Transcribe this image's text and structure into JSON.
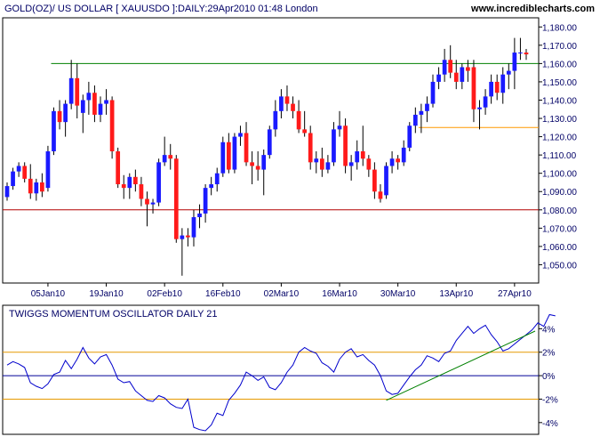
{
  "header": {
    "title": "GOLD(OZ)/ US DOLLAR [ XAUUSDO ]:DAILY:29Apr2010 01:48 London",
    "brand": "www.incrediblecharts.com"
  },
  "chart_data": [
    {
      "type": "candlestick",
      "title": "GOLD(OZ)/ US DOLLAR [ XAUUSDO ]:DAILY:29Apr2010 01:48 London",
      "y_ticks": [
        "1,050.00",
        "1,060.00",
        "1,070.00",
        "1,080.00",
        "1,090.00",
        "1,100.00",
        "1,110.00",
        "1,120.00",
        "1,130.00",
        "1,140.00",
        "1,150.00",
        "1,160.00",
        "1,170.00",
        "1,180.00"
      ],
      "ylim": [
        1040,
        1185
      ],
      "x_ticks": [
        "05Jan10",
        "19Jan10",
        "02Feb10",
        "16Feb10",
        "02Mar10",
        "16Mar10",
        "30Mar10",
        "13Apr10",
        "27Apr10"
      ],
      "colors": {
        "up": "#1a1aff",
        "down": "#ff1a1a",
        "wick": "#000000",
        "resistance": "#008000",
        "support": "#b30000",
        "low_line": "#ff9900"
      },
      "lines": [
        {
          "name": "resistance",
          "value": 1160,
          "from_index": 8,
          "to_index": 84
        },
        {
          "name": "support",
          "value": 1080,
          "from_index": 0,
          "to_index": 84
        },
        {
          "name": "recent-low",
          "value": 1125,
          "from_index": 71,
          "to_index": 84
        }
      ],
      "candles": [
        {
          "date": "2009-12-24",
          "o": 1087,
          "h": 1095,
          "l": 1085,
          "c": 1093
        },
        {
          "date": "2009-12-28",
          "o": 1093,
          "h": 1103,
          "l": 1091,
          "c": 1101
        },
        {
          "date": "2009-12-29",
          "o": 1101,
          "h": 1106,
          "l": 1098,
          "c": 1104
        },
        {
          "date": "2009-12-30",
          "o": 1104,
          "h": 1106,
          "l": 1095,
          "c": 1097
        },
        {
          "date": "2009-12-31",
          "o": 1097,
          "h": 1105,
          "l": 1086,
          "c": 1089
        },
        {
          "date": "2010-01-01",
          "o": 1089,
          "h": 1097,
          "l": 1085,
          "c": 1095
        },
        {
          "date": "2010-01-04",
          "o": 1095,
          "h": 1100,
          "l": 1087,
          "c": 1090
        },
        {
          "date": "2010-01-05",
          "o": 1092,
          "h": 1115,
          "l": 1090,
          "c": 1112
        },
        {
          "date": "2010-01-06",
          "o": 1112,
          "h": 1136,
          "l": 1110,
          "c": 1134
        },
        {
          "date": "2010-01-07",
          "o": 1134,
          "h": 1140,
          "l": 1124,
          "c": 1128
        },
        {
          "date": "2010-01-08",
          "o": 1128,
          "h": 1140,
          "l": 1120,
          "c": 1138
        },
        {
          "date": "2010-01-11",
          "o": 1138,
          "h": 1162,
          "l": 1135,
          "c": 1152
        },
        {
          "date": "2010-01-12",
          "o": 1152,
          "h": 1160,
          "l": 1130,
          "c": 1137
        },
        {
          "date": "2010-01-13",
          "o": 1133,
          "h": 1143,
          "l": 1122,
          "c": 1140
        },
        {
          "date": "2010-01-14",
          "o": 1140,
          "h": 1150,
          "l": 1132,
          "c": 1144
        },
        {
          "date": "2010-01-15",
          "o": 1144,
          "h": 1148,
          "l": 1128,
          "c": 1132
        },
        {
          "date": "2010-01-18",
          "o": 1132,
          "h": 1142,
          "l": 1128,
          "c": 1138
        },
        {
          "date": "2010-01-19",
          "o": 1138,
          "h": 1146,
          "l": 1132,
          "c": 1140
        },
        {
          "date": "2010-01-20",
          "o": 1140,
          "h": 1142,
          "l": 1108,
          "c": 1112
        },
        {
          "date": "2010-01-21",
          "o": 1112,
          "h": 1114,
          "l": 1092,
          "c": 1094
        },
        {
          "date": "2010-01-22",
          "o": 1094,
          "h": 1099,
          "l": 1086,
          "c": 1092
        },
        {
          "date": "2010-01-25",
          "o": 1092,
          "h": 1100,
          "l": 1086,
          "c": 1098
        },
        {
          "date": "2010-01-26",
          "o": 1098,
          "h": 1102,
          "l": 1090,
          "c": 1094
        },
        {
          "date": "2010-01-27",
          "o": 1094,
          "h": 1098,
          "l": 1082,
          "c": 1086
        },
        {
          "date": "2010-01-28",
          "o": 1086,
          "h": 1090,
          "l": 1071,
          "c": 1083
        },
        {
          "date": "2010-01-29",
          "o": 1083,
          "h": 1086,
          "l": 1078,
          "c": 1084
        },
        {
          "date": "2010-02-01",
          "o": 1084,
          "h": 1108,
          "l": 1082,
          "c": 1106
        },
        {
          "date": "2010-02-02",
          "o": 1106,
          "h": 1120,
          "l": 1104,
          "c": 1110
        },
        {
          "date": "2010-02-03",
          "o": 1110,
          "h": 1116,
          "l": 1102,
          "c": 1108
        },
        {
          "date": "2010-02-04",
          "o": 1108,
          "h": 1110,
          "l": 1062,
          "c": 1064
        },
        {
          "date": "2010-02-05",
          "o": 1064,
          "h": 1070,
          "l": 1044,
          "c": 1066
        },
        {
          "date": "2010-02-08",
          "o": 1066,
          "h": 1070,
          "l": 1060,
          "c": 1065
        },
        {
          "date": "2010-02-09",
          "o": 1065,
          "h": 1080,
          "l": 1060,
          "c": 1076
        },
        {
          "date": "2010-02-10",
          "o": 1076,
          "h": 1083,
          "l": 1070,
          "c": 1078
        },
        {
          "date": "2010-02-11",
          "o": 1078,
          "h": 1094,
          "l": 1073,
          "c": 1092
        },
        {
          "date": "2010-02-12",
          "o": 1092,
          "h": 1098,
          "l": 1088,
          "c": 1094
        },
        {
          "date": "2010-02-15",
          "o": 1094,
          "h": 1103,
          "l": 1090,
          "c": 1100
        },
        {
          "date": "2010-02-16",
          "o": 1100,
          "h": 1120,
          "l": 1098,
          "c": 1117
        },
        {
          "date": "2010-02-17",
          "o": 1117,
          "h": 1122,
          "l": 1100,
          "c": 1102
        },
        {
          "date": "2010-02-18",
          "o": 1102,
          "h": 1122,
          "l": 1100,
          "c": 1120
        },
        {
          "date": "2010-02-19",
          "o": 1120,
          "h": 1126,
          "l": 1115,
          "c": 1122
        },
        {
          "date": "2010-02-22",
          "o": 1122,
          "h": 1128,
          "l": 1104,
          "c": 1106
        },
        {
          "date": "2010-02-23",
          "o": 1106,
          "h": 1112,
          "l": 1094,
          "c": 1104
        },
        {
          "date": "2010-02-24",
          "o": 1104,
          "h": 1112,
          "l": 1096,
          "c": 1102
        },
        {
          "date": "2010-02-25",
          "o": 1102,
          "h": 1113,
          "l": 1088,
          "c": 1110
        },
        {
          "date": "2010-02-26",
          "o": 1110,
          "h": 1126,
          "l": 1108,
          "c": 1124
        },
        {
          "date": "2010-03-01",
          "o": 1124,
          "h": 1140,
          "l": 1120,
          "c": 1134
        },
        {
          "date": "2010-03-02",
          "o": 1134,
          "h": 1146,
          "l": 1130,
          "c": 1142
        },
        {
          "date": "2010-03-03",
          "o": 1142,
          "h": 1148,
          "l": 1134,
          "c": 1138
        },
        {
          "date": "2010-03-04",
          "o": 1138,
          "h": 1142,
          "l": 1130,
          "c": 1134
        },
        {
          "date": "2010-03-05",
          "o": 1134,
          "h": 1140,
          "l": 1122,
          "c": 1124
        },
        {
          "date": "2010-03-08",
          "o": 1124,
          "h": 1134,
          "l": 1120,
          "c": 1122
        },
        {
          "date": "2010-03-09",
          "o": 1122,
          "h": 1126,
          "l": 1102,
          "c": 1106
        },
        {
          "date": "2010-03-10",
          "o": 1106,
          "h": 1112,
          "l": 1100,
          "c": 1108
        },
        {
          "date": "2010-03-11",
          "o": 1108,
          "h": 1114,
          "l": 1098,
          "c": 1102
        },
        {
          "date": "2010-03-12",
          "o": 1102,
          "h": 1110,
          "l": 1100,
          "c": 1106
        },
        {
          "date": "2010-03-15",
          "o": 1106,
          "h": 1128,
          "l": 1104,
          "c": 1124
        },
        {
          "date": "2010-03-16",
          "o": 1124,
          "h": 1134,
          "l": 1120,
          "c": 1126
        },
        {
          "date": "2010-03-17",
          "o": 1126,
          "h": 1130,
          "l": 1100,
          "c": 1104
        },
        {
          "date": "2010-03-18",
          "o": 1104,
          "h": 1110,
          "l": 1096,
          "c": 1106
        },
        {
          "date": "2010-03-19",
          "o": 1106,
          "h": 1118,
          "l": 1102,
          "c": 1112
        },
        {
          "date": "2010-03-22",
          "o": 1112,
          "h": 1126,
          "l": 1104,
          "c": 1108
        },
        {
          "date": "2010-03-23",
          "o": 1108,
          "h": 1110,
          "l": 1098,
          "c": 1102
        },
        {
          "date": "2010-03-24",
          "o": 1102,
          "h": 1106,
          "l": 1086,
          "c": 1090
        },
        {
          "date": "2010-03-25",
          "o": 1090,
          "h": 1094,
          "l": 1084,
          "c": 1086
        },
        {
          "date": "2010-03-26",
          "o": 1088,
          "h": 1106,
          "l": 1086,
          "c": 1104
        },
        {
          "date": "2010-03-29",
          "o": 1104,
          "h": 1112,
          "l": 1100,
          "c": 1108
        },
        {
          "date": "2010-03-30",
          "o": 1108,
          "h": 1110,
          "l": 1102,
          "c": 1106
        },
        {
          "date": "2010-03-31",
          "o": 1106,
          "h": 1118,
          "l": 1104,
          "c": 1114
        },
        {
          "date": "2010-04-01",
          "o": 1114,
          "h": 1128,
          "l": 1112,
          "c": 1126
        },
        {
          "date": "2010-04-02",
          "o": 1126,
          "h": 1136,
          "l": 1122,
          "c": 1132
        },
        {
          "date": "2010-04-05",
          "o": 1132,
          "h": 1138,
          "l": 1122,
          "c": 1134
        },
        {
          "date": "2010-04-06",
          "o": 1134,
          "h": 1142,
          "l": 1128,
          "c": 1138
        },
        {
          "date": "2010-04-07",
          "o": 1138,
          "h": 1154,
          "l": 1136,
          "c": 1150
        },
        {
          "date": "2010-04-08",
          "o": 1150,
          "h": 1158,
          "l": 1146,
          "c": 1154
        },
        {
          "date": "2010-04-09",
          "o": 1154,
          "h": 1168,
          "l": 1150,
          "c": 1162
        },
        {
          "date": "2010-04-12",
          "o": 1162,
          "h": 1170,
          "l": 1152,
          "c": 1155
        },
        {
          "date": "2010-04-13",
          "o": 1155,
          "h": 1162,
          "l": 1146,
          "c": 1150
        },
        {
          "date": "2010-04-14",
          "o": 1150,
          "h": 1160,
          "l": 1146,
          "c": 1158
        },
        {
          "date": "2010-04-15",
          "o": 1158,
          "h": 1162,
          "l": 1150,
          "c": 1156
        },
        {
          "date": "2010-04-16",
          "o": 1158,
          "h": 1162,
          "l": 1128,
          "c": 1135
        },
        {
          "date": "2010-04-19",
          "o": 1135,
          "h": 1140,
          "l": 1124,
          "c": 1136
        },
        {
          "date": "2010-04-20",
          "o": 1136,
          "h": 1146,
          "l": 1132,
          "c": 1142
        },
        {
          "date": "2010-04-21",
          "o": 1142,
          "h": 1154,
          "l": 1138,
          "c": 1150
        },
        {
          "date": "2010-04-22",
          "o": 1150,
          "h": 1154,
          "l": 1140,
          "c": 1144
        },
        {
          "date": "2010-04-23",
          "o": 1144,
          "h": 1158,
          "l": 1138,
          "c": 1154
        },
        {
          "date": "2010-04-26",
          "o": 1154,
          "h": 1160,
          "l": 1146,
          "c": 1156
        },
        {
          "date": "2010-04-27",
          "o": 1156,
          "h": 1174,
          "l": 1146,
          "c": 1166
        },
        {
          "date": "2010-04-28",
          "o": 1166,
          "h": 1174,
          "l": 1162,
          "c": 1166
        },
        {
          "date": "2010-04-29",
          "o": 1166,
          "h": 1168,
          "l": 1162,
          "c": 1165
        }
      ]
    },
    {
      "type": "line",
      "title": "TWIGGS MOMENTUM OSCILLATOR DAILY 21",
      "y_ticks": [
        "-4%",
        "-2%",
        "0%",
        "2%",
        "4%"
      ],
      "ylim": [
        -5,
        6
      ],
      "colors": {
        "line": "#0000cc",
        "threshold": "#e69900",
        "zero": "#000099",
        "trend": "#008000"
      },
      "thresholds": [
        2,
        -2
      ],
      "trendline": {
        "from_index": 65,
        "from_value": -2.1,
        "to_index": 89,
        "to_value": 3.8
      },
      "series": [
        {
          "values": [
            0.9,
            1.2,
            1.0,
            0.7,
            -0.6,
            -0.9,
            -1.1,
            -0.7,
            0.1,
            0.3,
            1.3,
            0.6,
            1.4,
            2.4,
            1.5,
            1.0,
            1.6,
            1.8,
            0.9,
            -0.3,
            -0.6,
            -0.5,
            -1.3,
            -1.7,
            -2.1,
            -2.2,
            -1.7,
            -1.9,
            -2.4,
            -2.7,
            -2.8,
            -2.0,
            -4.4,
            -4.6,
            -4.7,
            -4.2,
            -3.2,
            -3.4,
            -2.1,
            -1.5,
            -0.8,
            0.3,
            0.0,
            -0.4,
            -0.1,
            -1.0,
            -1.2,
            -0.6,
            0.3,
            0.9,
            2.0,
            2.4,
            2.1,
            1.9,
            1.1,
            0.8,
            0.3,
            1.4,
            2.0,
            2.3,
            1.6,
            1.8,
            1.3,
            0.9,
            0.0,
            -1.3,
            -1.6,
            -1.5,
            -0.8,
            -0.1,
            0.5,
            0.9,
            1.7,
            1.5,
            1.2,
            1.9,
            2.1,
            3.0,
            3.6,
            4.2,
            3.6,
            4.0,
            4.3,
            3.5,
            2.9,
            2.1,
            2.3,
            2.7,
            3.1,
            3.5,
            3.9,
            4.5,
            4.2,
            5.2,
            5.1
          ]
        }
      ]
    }
  ]
}
